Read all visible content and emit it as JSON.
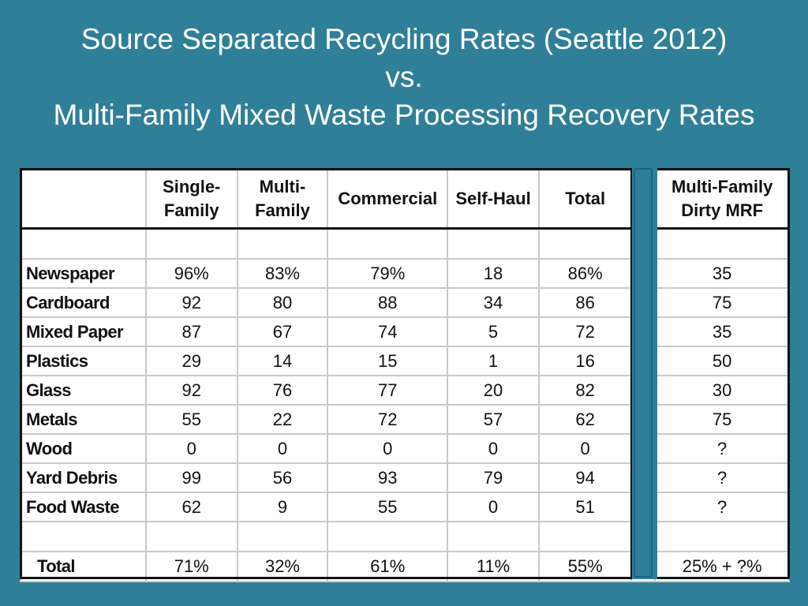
{
  "title": {
    "line1": "Source Separated Recycling Rates (Seattle 2012)",
    "line2": "vs.",
    "line3": "Multi-Family Mixed Waste Processing Recovery Rates"
  },
  "table": {
    "headers": [
      "Single-Family",
      "Multi-Family",
      "Commercial",
      "Self-Haul",
      "Total"
    ],
    "mrf_header": "Multi-Family Dirty MRF",
    "rows": [
      {
        "label": "Newspaper",
        "values": [
          "96%",
          "83%",
          "79%",
          "18",
          "86%"
        ],
        "mrf": "35"
      },
      {
        "label": "Cardboard",
        "values": [
          "92",
          "80",
          "88",
          "34",
          "86"
        ],
        "mrf": "75"
      },
      {
        "label": "Mixed Paper",
        "values": [
          "87",
          "67",
          "74",
          "5",
          "72"
        ],
        "mrf": "35"
      },
      {
        "label": "Plastics",
        "values": [
          "29",
          "14",
          "15",
          "1",
          "16"
        ],
        "mrf": "50"
      },
      {
        "label": "Glass",
        "values": [
          "92",
          "76",
          "77",
          "20",
          "82"
        ],
        "mrf": "30"
      },
      {
        "label": "Metals",
        "values": [
          "55",
          "22",
          "72",
          "57",
          "62"
        ],
        "mrf": "75"
      },
      {
        "label": "Wood",
        "values": [
          "0",
          "0",
          "0",
          "0",
          "0"
        ],
        "mrf": "?"
      },
      {
        "label": "Yard Debris",
        "values": [
          "99",
          "56",
          "93",
          "79",
          "94"
        ],
        "mrf": "?"
      },
      {
        "label": "Food Waste",
        "values": [
          "62",
          "9",
          "55",
          "0",
          "51"
        ],
        "mrf": "?"
      }
    ],
    "total": {
      "label": "Total",
      "values": [
        "71%",
        "32%",
        "61%",
        "11%",
        "55%"
      ],
      "mrf": "25% + ?%"
    }
  }
}
